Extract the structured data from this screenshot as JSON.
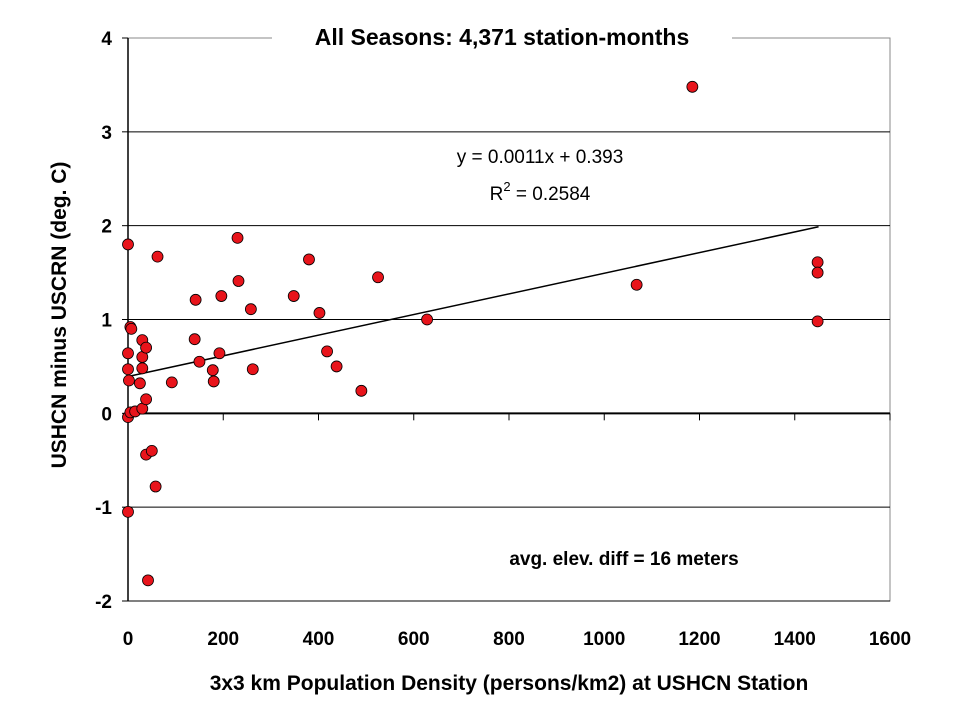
{
  "chart_data": {
    "type": "scatter",
    "title": "All Seasons: 4,371 station-months",
    "xlabel": "3x3 km Population Density (persons/km2) at USHCN Station",
    "ylabel": "USHCN minus USCRN (deg. C)",
    "xlim": [
      0,
      1600
    ],
    "ylim": [
      -2,
      4
    ],
    "xticks": [
      0,
      200,
      400,
      600,
      800,
      1000,
      1200,
      1400,
      1600
    ],
    "yticks": [
      -2,
      -1,
      0,
      1,
      2,
      3,
      4
    ],
    "grid": "horizontal",
    "point_color": "#e8141b",
    "trendline": {
      "slope": 0.0011,
      "intercept": 0.393,
      "x_range": [
        0,
        1450
      ]
    },
    "equation_text": "y = 0.0011x + 0.393",
    "r2_prefix": "R",
    "r2_exp": "2",
    "r2_value": " = 0.2584",
    "annotation": "avg. elev. diff = 16 meters",
    "points": [
      {
        "x": 0,
        "y": 1.8
      },
      {
        "x": 0,
        "y": 0.64
      },
      {
        "x": 0,
        "y": 0.47
      },
      {
        "x": 2,
        "y": 0.35
      },
      {
        "x": 0,
        "y": -0.04
      },
      {
        "x": 5,
        "y": 0.01
      },
      {
        "x": 0,
        "y": -1.05
      },
      {
        "x": 5,
        "y": 0.92
      },
      {
        "x": 7,
        "y": 0.9
      },
      {
        "x": 15,
        "y": 0.02
      },
      {
        "x": 25,
        "y": 0.32
      },
      {
        "x": 30,
        "y": 0.78
      },
      {
        "x": 30,
        "y": 0.6
      },
      {
        "x": 30,
        "y": 0.48
      },
      {
        "x": 30,
        "y": 0.05
      },
      {
        "x": 38,
        "y": 0.7
      },
      {
        "x": 38,
        "y": 0.15
      },
      {
        "x": 38,
        "y": -0.44
      },
      {
        "x": 50,
        "y": -0.4
      },
      {
        "x": 42,
        "y": -1.78
      },
      {
        "x": 58,
        "y": -0.78
      },
      {
        "x": 62,
        "y": 1.67
      },
      {
        "x": 92,
        "y": 0.33
      },
      {
        "x": 140,
        "y": 0.79
      },
      {
        "x": 142,
        "y": 1.21
      },
      {
        "x": 150,
        "y": 0.55
      },
      {
        "x": 178,
        "y": 0.46
      },
      {
        "x": 180,
        "y": 0.34
      },
      {
        "x": 192,
        "y": 0.64
      },
      {
        "x": 196,
        "y": 1.25
      },
      {
        "x": 230,
        "y": 1.87
      },
      {
        "x": 232,
        "y": 1.41
      },
      {
        "x": 258,
        "y": 1.11
      },
      {
        "x": 262,
        "y": 0.47
      },
      {
        "x": 348,
        "y": 1.25
      },
      {
        "x": 380,
        "y": 1.64
      },
      {
        "x": 402,
        "y": 1.07
      },
      {
        "x": 418,
        "y": 0.66
      },
      {
        "x": 438,
        "y": 0.5
      },
      {
        "x": 490,
        "y": 0.24
      },
      {
        "x": 525,
        "y": 1.45
      },
      {
        "x": 628,
        "y": 1.0
      },
      {
        "x": 1068,
        "y": 1.37
      },
      {
        "x": 1185,
        "y": 3.48
      },
      {
        "x": 1448,
        "y": 1.61
      },
      {
        "x": 1448,
        "y": 1.5
      },
      {
        "x": 1448,
        "y": 0.98
      }
    ]
  }
}
